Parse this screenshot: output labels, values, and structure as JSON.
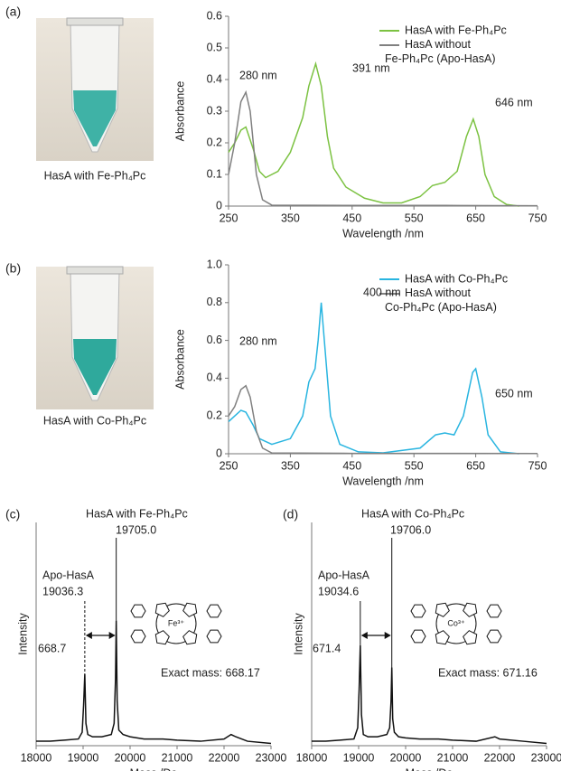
{
  "chart_data": [
    {
      "type": "line",
      "panel_label": "(a)",
      "xlabel": "Wavelength /nm",
      "ylabel": "Absorbance",
      "xlim": [
        250,
        750
      ],
      "xticks": [
        250,
        350,
        450,
        550,
        650,
        750
      ],
      "ylim": [
        0,
        0.6
      ],
      "yticks": [
        0,
        0.1,
        0.2,
        0.3,
        0.4,
        0.5,
        0.6
      ],
      "legend": "upper right",
      "annotations": [
        "391 nm",
        "280 nm",
        "646 nm"
      ],
      "series": [
        {
          "name": "HasA with Fe-Ph₄Pc",
          "color": "#7cc242",
          "x": [
            250,
            260,
            270,
            278,
            290,
            300,
            310,
            330,
            350,
            370,
            380,
            391,
            400,
            410,
            420,
            440,
            470,
            500,
            530,
            560,
            580,
            600,
            620,
            635,
            646,
            655,
            665,
            680,
            700,
            720
          ],
          "values": [
            0.17,
            0.2,
            0.24,
            0.25,
            0.18,
            0.11,
            0.09,
            0.11,
            0.17,
            0.28,
            0.38,
            0.45,
            0.38,
            0.22,
            0.12,
            0.06,
            0.025,
            0.01,
            0.01,
            0.03,
            0.065,
            0.075,
            0.11,
            0.22,
            0.275,
            0.22,
            0.1,
            0.03,
            0.005,
            0
          ]
        },
        {
          "name": "HasA without Fe-Ph₄Pc (Apo-HasA)",
          "color": "#808080",
          "x": [
            250,
            260,
            270,
            278,
            285,
            295,
            305,
            320,
            450,
            600,
            750
          ],
          "values": [
            0.1,
            0.2,
            0.33,
            0.36,
            0.3,
            0.1,
            0.02,
            0.003,
            0.002,
            0.002,
            0.001
          ]
        }
      ]
    },
    {
      "type": "line",
      "panel_label": "(b)",
      "xlabel": "Wavelength /nm",
      "ylabel": "Absorbance",
      "xlim": [
        250,
        750
      ],
      "xticks": [
        250,
        350,
        450,
        550,
        650,
        750
      ],
      "ylim": [
        0,
        1
      ],
      "yticks": [
        0,
        0.2,
        0.4,
        0.6,
        0.8,
        {
          "value": 1,
          "label": "1.0"
        }
      ],
      "legend": "upper right",
      "annotations": [
        "400 nm",
        "280 nm",
        "650 nm"
      ],
      "series": [
        {
          "name": "HasA with Co-Ph₄Pc",
          "color": "#29b5e0",
          "x": [
            250,
            260,
            270,
            278,
            290,
            300,
            320,
            350,
            370,
            380,
            390,
            395,
            400,
            405,
            415,
            430,
            460,
            500,
            560,
            585,
            600,
            615,
            630,
            645,
            650,
            660,
            670,
            690,
            720
          ],
          "values": [
            0.17,
            0.2,
            0.23,
            0.22,
            0.15,
            0.08,
            0.05,
            0.08,
            0.2,
            0.38,
            0.45,
            0.6,
            0.8,
            0.6,
            0.2,
            0.05,
            0.01,
            0.005,
            0.03,
            0.1,
            0.11,
            0.1,
            0.2,
            0.43,
            0.45,
            0.3,
            0.1,
            0.01,
            0
          ]
        },
        {
          "name": "HasA without Co-Ph₄Pc (Apo-HasA)",
          "color": "#808080",
          "x": [
            250,
            260,
            270,
            278,
            285,
            295,
            305,
            320,
            450,
            600,
            750
          ],
          "values": [
            0.2,
            0.25,
            0.34,
            0.36,
            0.3,
            0.12,
            0.03,
            0.004,
            0.002,
            0.002,
            0.001
          ]
        }
      ]
    },
    {
      "type": "line",
      "panel_label": "(c)",
      "xlabel": "Mass /Da",
      "ylabel": "Intensity",
      "xlim": [
        18000,
        23000
      ],
      "xticks": [
        18000,
        19000,
        20000,
        21000,
        22000,
        23000
      ],
      "ylim": [
        0,
        1
      ],
      "annotations": [
        "HasA with Fe-Ph₄Pc",
        "19705.0",
        "Apo-HasA",
        "19036.3",
        "668.7",
        "Exact mass: 668.17"
      ],
      "structure_label": "Fe³⁺",
      "series": [
        {
          "color": "#111111",
          "x": [
            18000,
            18300,
            18600,
            18900,
            18980,
            19010,
            19036,
            19060,
            19100,
            19200,
            19400,
            19600,
            19660,
            19690,
            19705,
            19725,
            19760,
            19850,
            20000,
            20300,
            20700,
            21000,
            21500,
            22000,
            22150,
            22250,
            22500,
            23000
          ],
          "values": [
            0.02,
            0.02,
            0.025,
            0.03,
            0.06,
            0.18,
            0.32,
            0.1,
            0.05,
            0.04,
            0.04,
            0.05,
            0.1,
            0.3,
            0.56,
            0.2,
            0.07,
            0.05,
            0.04,
            0.03,
            0.03,
            0.025,
            0.02,
            0.03,
            0.05,
            0.04,
            0.02,
            0.01
          ]
        }
      ]
    },
    {
      "type": "line",
      "panel_label": "(d)",
      "xlabel": "Mass /Da",
      "ylabel": "Intensity",
      "xlim": [
        18000,
        23000
      ],
      "xticks": [
        18000,
        19000,
        20000,
        21000,
        22000,
        23000
      ],
      "ylim": [
        0,
        1
      ],
      "annotations": [
        "HasA with Co-Ph₄Pc",
        "19706.0",
        "Apo-HasA",
        "19034.6",
        "671.4",
        "Exact mass: 671.16"
      ],
      "structure_label": "Co³⁺",
      "series": [
        {
          "color": "#111111",
          "x": [
            18000,
            18300,
            18600,
            18900,
            18980,
            19010,
            19035,
            19060,
            19100,
            19200,
            19400,
            19600,
            19660,
            19690,
            19706,
            19725,
            19760,
            19850,
            20000,
            20300,
            20700,
            21000,
            21500,
            21900,
            22000,
            22500,
            23000
          ],
          "values": [
            0.02,
            0.02,
            0.025,
            0.03,
            0.08,
            0.25,
            0.45,
            0.14,
            0.05,
            0.04,
            0.04,
            0.05,
            0.08,
            0.2,
            0.35,
            0.12,
            0.06,
            0.04,
            0.035,
            0.03,
            0.03,
            0.025,
            0.02,
            0.04,
            0.03,
            0.02,
            0.01
          ]
        }
      ]
    }
  ],
  "photos": [
    {
      "caption": "HasA with Fe-Ph₄Pc"
    },
    {
      "caption": "HasA with Co-Ph₄Pc"
    }
  ]
}
